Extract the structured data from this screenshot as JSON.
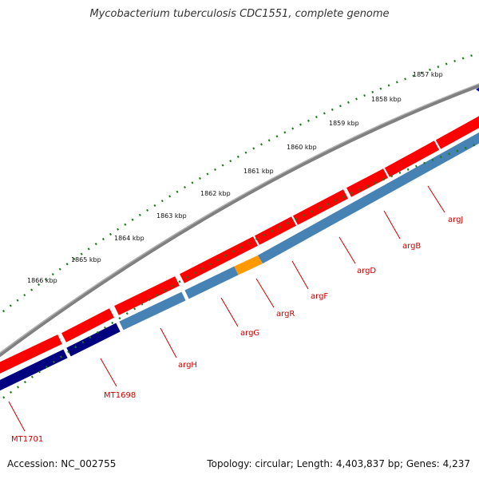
{
  "title": "Mycobacterium tuberculosis CDC1551, complete genome",
  "footer": {
    "accession": "Accession: NC_002755",
    "summary": "Topology: circular; Length: 4,403,837 bp; Genes: 4,237"
  },
  "colors": {
    "backbone": "#808080",
    "forward_gene": "#ff0000",
    "reverse_gene": "#4682b4",
    "reverse_gene_alt": "#000080",
    "highlight_gene": "#ff9900",
    "tick": "#1a7a1a",
    "label": "#cc0000"
  },
  "scale": {
    "unit": "kbp",
    "tick_labels": [
      "1857 kbp",
      "1858 kbp",
      "1859 kbp",
      "1860 kbp",
      "1861 kbp",
      "1862 kbp",
      "1863 kbp",
      "1864 kbp",
      "1865 kbp",
      "1866 kbp"
    ]
  },
  "gene_labels": [
    "argJ",
    "argB",
    "argD",
    "argF",
    "argR",
    "argG",
    "argH",
    "MT1698",
    "MT1701"
  ]
}
